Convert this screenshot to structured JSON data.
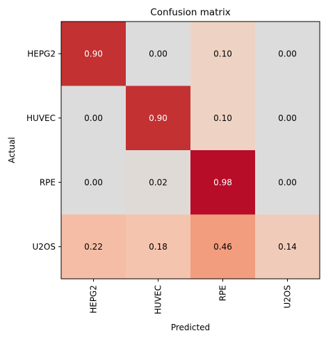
{
  "chart_data": {
    "type": "heatmap",
    "title": "Confusion matrix",
    "xlabel": "Predicted",
    "ylabel": "Actual",
    "x_categories": [
      "HEPG2",
      "HUVEC",
      "RPE",
      "U2OS"
    ],
    "y_categories": [
      "HEPG2",
      "HUVEC",
      "RPE",
      "U2OS"
    ],
    "values": [
      [
        0.9,
        0.0,
        0.1,
        0.0
      ],
      [
        0.0,
        0.9,
        0.1,
        0.0
      ],
      [
        0.0,
        0.02,
        0.98,
        0.0
      ],
      [
        0.22,
        0.18,
        0.46,
        0.14
      ]
    ],
    "value_range": [
      0,
      1
    ],
    "colormap": "coolwarm",
    "color_stops": [
      "#dddcdc",
      "#eed3c5",
      "#f5c0a8",
      "#f39f80",
      "#c33132",
      "#b40426"
    ],
    "grid": false,
    "legend": "none"
  }
}
